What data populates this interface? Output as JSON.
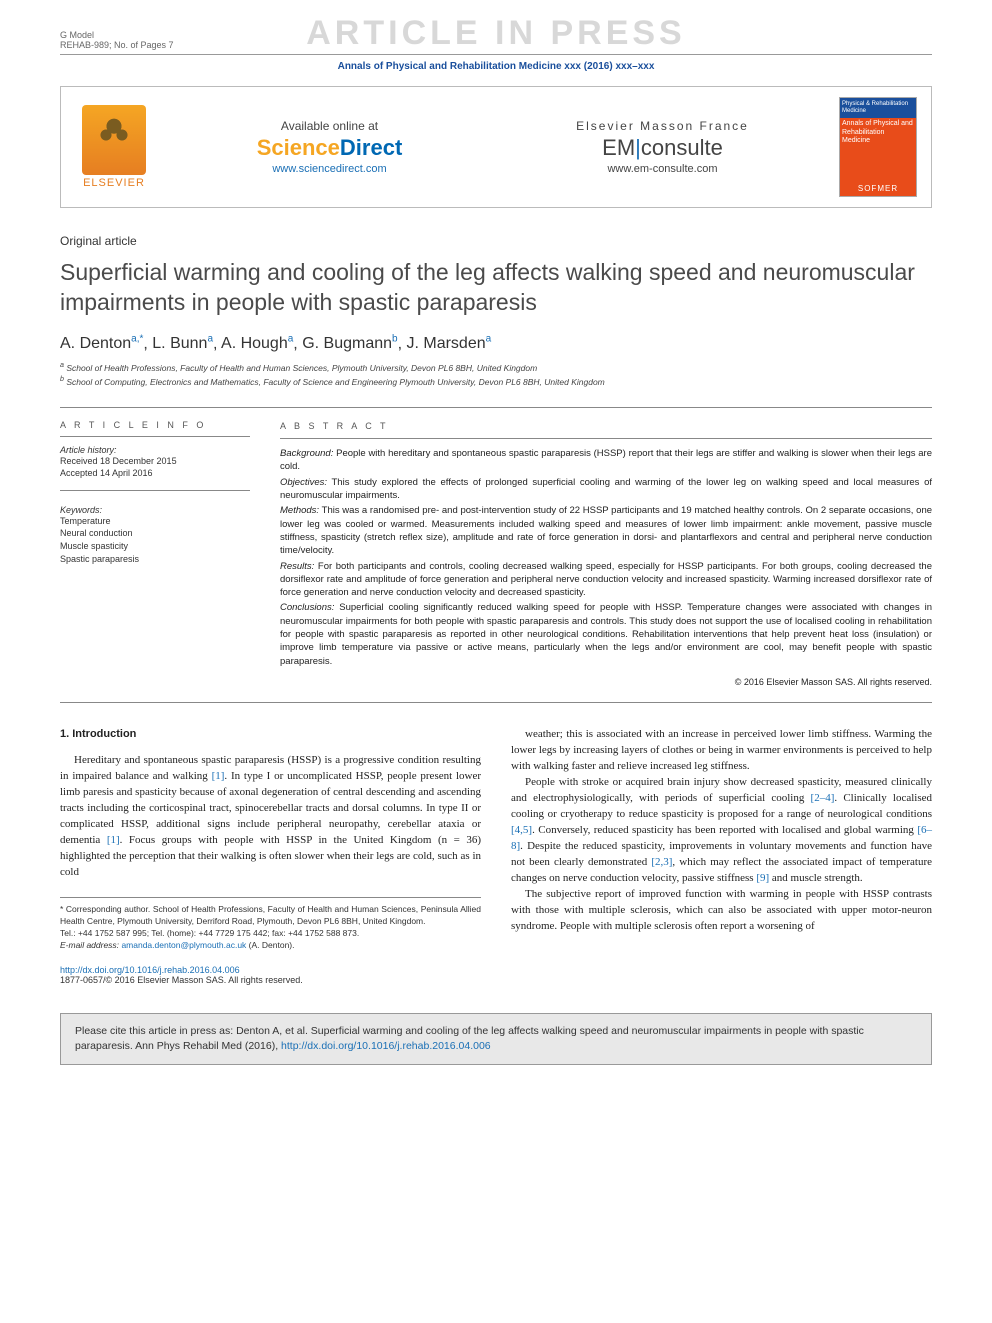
{
  "watermark": "ARTICLE IN PRESS",
  "gmodel": {
    "line1": "G Model",
    "line2": "REHAB-989; No. of Pages 7"
  },
  "journal_ref": "Annals of Physical and Rehabilitation Medicine xxx (2016) xxx–xxx",
  "header": {
    "elsevier": "ELSEVIER",
    "sd": {
      "avail": "Available online at",
      "logo_left": "Science",
      "logo_right": "Direct",
      "url": "www.sciencedirect.com"
    },
    "em": {
      "top": "Elsevier Masson France",
      "logo_left": "EM",
      "logo_right": "consulte",
      "url": "www.em-consulte.com"
    },
    "cover": {
      "top": "Physical &\nRehabilitation\nMedicine",
      "mid": "Annals of Physical and Rehabilitation Medicine",
      "bot": "SOFMER"
    }
  },
  "article_type": "Original article",
  "title": "Superficial warming and cooling of the leg affects walking speed and neuromuscular impairments in people with spastic paraparesis",
  "authors_html": "A. Denton|a,*|, L. Bunn|a|, A. Hough|a|, G. Bugmann|b|, J. Marsden|a|",
  "affiliations": [
    "a School of Health Professions, Faculty of Health and Human Sciences, Plymouth University, Devon PL6 8BH, United Kingdom",
    "b School of Computing, Electronics and Mathematics, Faculty of Science and Engineering Plymouth University, Devon PL6 8BH, United Kingdom"
  ],
  "info": {
    "head": "A R T I C L E  I N F O",
    "history_label": "Article history:",
    "received": "Received 18 December 2015",
    "accepted": "Accepted 14 April 2016",
    "kw_label": "Keywords:",
    "keywords": [
      "Temperature",
      "Neural conduction",
      "Muscle spasticity",
      "Spastic paraparesis"
    ]
  },
  "abstract": {
    "head": "A B S T R A C T",
    "background_lbl": "Background:",
    "background": "People with hereditary and spontaneous spastic paraparesis (HSSP) report that their legs are stiffer and walking is slower when their legs are cold.",
    "objectives_lbl": "Objectives:",
    "objectives": "This study explored the effects of prolonged superficial cooling and warming of the lower leg on walking speed and local measures of neuromuscular impairments.",
    "methods_lbl": "Methods:",
    "methods": "This was a randomised pre- and post-intervention study of 22 HSSP participants and 19 matched healthy controls. On 2 separate occasions, one lower leg was cooled or warmed. Measurements included walking speed and measures of lower limb impairment: ankle movement, passive muscle stiffness, spasticity (stretch reflex size), amplitude and rate of force generation in dorsi- and plantarflexors and central and peripheral nerve conduction time/velocity.",
    "results_lbl": "Results:",
    "results": "For both participants and controls, cooling decreased walking speed, especially for HSSP participants. For both groups, cooling decreased the dorsiflexor rate and amplitude of force generation and peripheral nerve conduction velocity and increased spasticity. Warming increased dorsiflexor rate of force generation and nerve conduction velocity and decreased spasticity.",
    "conclusions_lbl": "Conclusions:",
    "conclusions": "Superficial cooling significantly reduced walking speed for people with HSSP. Temperature changes were associated with changes in neuromuscular impairments for both people with spastic paraparesis and controls. This study does not support the use of localised cooling in rehabilitation for people with spastic paraparesis as reported in other neurological conditions. Rehabilitation interventions that help prevent heat loss (insulation) or improve limb temperature via passive or active means, particularly when the legs and/or environment are cool, may benefit people with spastic paraparesis.",
    "copyright": "© 2016 Elsevier Masson SAS. All rights reserved."
  },
  "intro": {
    "head": "1. Introduction",
    "p1a": "Hereditary and spontaneous spastic paraparesis (HSSP) is a progressive condition resulting in impaired balance and walking ",
    "r1": "[1]",
    "p1b": ". In type I or uncomplicated HSSP, people present lower limb paresis and spasticity because of axonal degeneration of central descending and ascending tracts including the corticospinal tract, spinocerebellar tracts and dorsal columns. In type II or complicated HSSP, additional signs include peripheral neuropathy, cerebellar ataxia or dementia ",
    "r1b": "[1]",
    "p1c": ". Focus groups with people with HSSP in the United Kingdom (n = 36) highlighted the perception that their walking is often slower when their legs are cold, such as in cold",
    "p2": "weather; this is associated with an increase in perceived lower limb stiffness. Warming the lower legs by increasing layers of clothes or being in warmer environments is perceived to help with walking faster and relieve increased leg stiffness.",
    "p3a": "People with stroke or acquired brain injury show decreased spasticity, measured clinically and electrophysiologically, with periods of superficial cooling ",
    "r24": "[2–4]",
    "p3b": ". Clinically localised cooling or cryotherapy to reduce spasticity is proposed for a range of neurological conditions ",
    "r45": "[4,5]",
    "p3c": ". Conversely, reduced spasticity has been reported with localised and global warming ",
    "r68": "[6–8]",
    "p3d": ". Despite the reduced spasticity, improvements in voluntary movements and function have not been clearly demonstrated ",
    "r23": "[2,3]",
    "p3e": ", which may reflect the associated impact of temperature changes on nerve conduction velocity, passive stiffness ",
    "r9": "[9]",
    "p3f": " and muscle strength.",
    "p4": "The subjective report of improved function with warming in people with HSSP contrasts with those with multiple sclerosis, which can also be associated with upper motor-neuron syndrome. People with multiple sclerosis often report a worsening of"
  },
  "footnotes": {
    "corr": "* Corresponding author. School of Health Professions, Faculty of Health and Human Sciences, Peninsula Allied Health Centre, Plymouth University, Derriford Road, Plymouth, Devon PL6 8BH, United Kingdom.",
    "tel": "Tel.: +44 1752 587 995; Tel. (home): +44 7729 175 442; fax: +44 1752 588 873.",
    "email_lbl": "E-mail address:",
    "email": "amanda.denton@plymouth.ac.uk",
    "email_who": " (A. Denton)."
  },
  "doi": {
    "link": "http://dx.doi.org/10.1016/j.rehab.2016.04.006",
    "issn": "1877-0657/© 2016 Elsevier Masson SAS. All rights reserved."
  },
  "cite": {
    "text": "Please cite this article in press as: Denton A, et al. Superficial warming and cooling of the leg affects walking speed and neuromuscular impairments in people with spastic paraparesis. Ann Phys Rehabil Med (2016), ",
    "link": "http://dx.doi.org/10.1016/j.rehab.2016.04.006"
  }
}
